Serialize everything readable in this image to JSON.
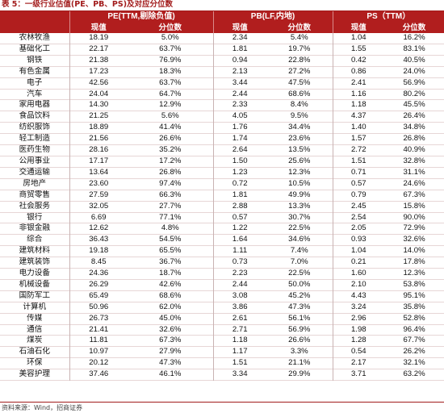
{
  "caption": "表 5：一级行业估值(PE、PB、PS)及对应分位数",
  "headers": {
    "pe": "PE(TTM,剔除负值)",
    "pb": "PB(LF,内地)",
    "ps": "PS（TTM）",
    "current": "现值",
    "percentile": "分位数"
  },
  "rows": [
    {
      "industry": "农林牧渔",
      "pe": "18.19",
      "pe_pct": "5.0%",
      "pb": "2.34",
      "pb_pct": "5.4%",
      "ps": "1.04",
      "ps_pct": "16.2%"
    },
    {
      "industry": "基础化工",
      "pe": "22.17",
      "pe_pct": "63.7%",
      "pb": "1.81",
      "pb_pct": "19.7%",
      "ps": "1.55",
      "ps_pct": "83.1%"
    },
    {
      "industry": "钢铁",
      "pe": "21.38",
      "pe_pct": "76.9%",
      "pb": "0.94",
      "pb_pct": "22.8%",
      "ps": "0.42",
      "ps_pct": "40.5%"
    },
    {
      "industry": "有色金属",
      "pe": "17.23",
      "pe_pct": "18.3%",
      "pb": "2.13",
      "pb_pct": "27.2%",
      "ps": "0.86",
      "ps_pct": "24.0%"
    },
    {
      "industry": "电子",
      "pe": "42.56",
      "pe_pct": "63.7%",
      "pb": "3.44",
      "pb_pct": "47.5%",
      "ps": "2.41",
      "ps_pct": "56.9%"
    },
    {
      "industry": "汽车",
      "pe": "24.04",
      "pe_pct": "64.7%",
      "pb": "2.44",
      "pb_pct": "68.6%",
      "ps": "1.16",
      "ps_pct": "80.2%"
    },
    {
      "industry": "家用电器",
      "pe": "14.30",
      "pe_pct": "12.9%",
      "pb": "2.33",
      "pb_pct": "8.4%",
      "ps": "1.18",
      "ps_pct": "45.5%"
    },
    {
      "industry": "食品饮料",
      "pe": "21.25",
      "pe_pct": "5.6%",
      "pb": "4.05",
      "pb_pct": "9.5%",
      "ps": "4.37",
      "ps_pct": "26.4%"
    },
    {
      "industry": "纺织服饰",
      "pe": "18.89",
      "pe_pct": "41.4%",
      "pb": "1.76",
      "pb_pct": "34.4%",
      "ps": "1.40",
      "ps_pct": "34.8%"
    },
    {
      "industry": "轻工制造",
      "pe": "21.56",
      "pe_pct": "26.6%",
      "pb": "1.74",
      "pb_pct": "23.6%",
      "ps": "1.57",
      "ps_pct": "26.8%"
    },
    {
      "industry": "医药生物",
      "pe": "28.16",
      "pe_pct": "35.2%",
      "pb": "2.64",
      "pb_pct": "13.5%",
      "ps": "2.72",
      "ps_pct": "40.9%"
    },
    {
      "industry": "公用事业",
      "pe": "17.17",
      "pe_pct": "17.2%",
      "pb": "1.50",
      "pb_pct": "25.6%",
      "ps": "1.51",
      "ps_pct": "32.8%"
    },
    {
      "industry": "交通运输",
      "pe": "13.64",
      "pe_pct": "26.8%",
      "pb": "1.23",
      "pb_pct": "12.3%",
      "ps": "0.71",
      "ps_pct": "31.1%"
    },
    {
      "industry": "房地产",
      "pe": "23.60",
      "pe_pct": "97.4%",
      "pb": "0.72",
      "pb_pct": "10.5%",
      "ps": "0.57",
      "ps_pct": "24.6%"
    },
    {
      "industry": "商贸零售",
      "pe": "27.59",
      "pe_pct": "66.3%",
      "pb": "1.81",
      "pb_pct": "49.9%",
      "ps": "0.79",
      "ps_pct": "67.3%"
    },
    {
      "industry": "社会服务",
      "pe": "32.05",
      "pe_pct": "27.7%",
      "pb": "2.88",
      "pb_pct": "13.3%",
      "ps": "2.45",
      "ps_pct": "15.8%"
    },
    {
      "industry": "银行",
      "pe": "6.69",
      "pe_pct": "77.1%",
      "pb": "0.57",
      "pb_pct": "30.7%",
      "ps": "2.54",
      "ps_pct": "90.0%"
    },
    {
      "industry": "非银金融",
      "pe": "12.62",
      "pe_pct": "4.8%",
      "pb": "1.22",
      "pb_pct": "22.5%",
      "ps": "2.05",
      "ps_pct": "72.9%"
    },
    {
      "industry": "综合",
      "pe": "36.43",
      "pe_pct": "54.5%",
      "pb": "1.64",
      "pb_pct": "34.6%",
      "ps": "0.93",
      "ps_pct": "32.6%"
    },
    {
      "industry": "建筑材料",
      "pe": "19.18",
      "pe_pct": "65.5%",
      "pb": "1.11",
      "pb_pct": "7.4%",
      "ps": "1.04",
      "ps_pct": "14.0%"
    },
    {
      "industry": "建筑装饰",
      "pe": "8.45",
      "pe_pct": "36.7%",
      "pb": "0.73",
      "pb_pct": "7.0%",
      "ps": "0.21",
      "ps_pct": "17.8%"
    },
    {
      "industry": "电力设备",
      "pe": "24.36",
      "pe_pct": "18.7%",
      "pb": "2.23",
      "pb_pct": "22.5%",
      "ps": "1.60",
      "ps_pct": "12.3%"
    },
    {
      "industry": "机械设备",
      "pe": "26.29",
      "pe_pct": "42.6%",
      "pb": "2.44",
      "pb_pct": "50.0%",
      "ps": "2.10",
      "ps_pct": "53.8%"
    },
    {
      "industry": "国防军工",
      "pe": "65.49",
      "pe_pct": "68.6%",
      "pb": "3.08",
      "pb_pct": "45.2%",
      "ps": "4.43",
      "ps_pct": "95.1%"
    },
    {
      "industry": "计算机",
      "pe": "50.96",
      "pe_pct": "62.0%",
      "pb": "3.86",
      "pb_pct": "47.3%",
      "ps": "3.24",
      "ps_pct": "35.8%"
    },
    {
      "industry": "传媒",
      "pe": "26.73",
      "pe_pct": "45.0%",
      "pb": "2.61",
      "pb_pct": "56.1%",
      "ps": "2.96",
      "ps_pct": "52.8%"
    },
    {
      "industry": "通信",
      "pe": "21.41",
      "pe_pct": "32.6%",
      "pb": "2.71",
      "pb_pct": "56.9%",
      "ps": "1.98",
      "ps_pct": "96.4%"
    },
    {
      "industry": "煤炭",
      "pe": "11.81",
      "pe_pct": "67.3%",
      "pb": "1.18",
      "pb_pct": "26.6%",
      "ps": "1.28",
      "ps_pct": "67.7%"
    },
    {
      "industry": "石油石化",
      "pe": "10.97",
      "pe_pct": "27.9%",
      "pb": "1.17",
      "pb_pct": "3.3%",
      "ps": "0.54",
      "ps_pct": "26.2%"
    },
    {
      "industry": "环保",
      "pe": "20.12",
      "pe_pct": "47.3%",
      "pb": "1.51",
      "pb_pct": "21.1%",
      "ps": "2.17",
      "ps_pct": "32.1%"
    },
    {
      "industry": "美容护理",
      "pe": "37.46",
      "pe_pct": "46.1%",
      "pb": "3.34",
      "pb_pct": "29.9%",
      "ps": "3.71",
      "ps_pct": "63.2%"
    }
  ],
  "source": "资料来源：Wind，招商证券",
  "colors": {
    "header_bg": "#b11e1e",
    "caption": "#a21c1c"
  }
}
